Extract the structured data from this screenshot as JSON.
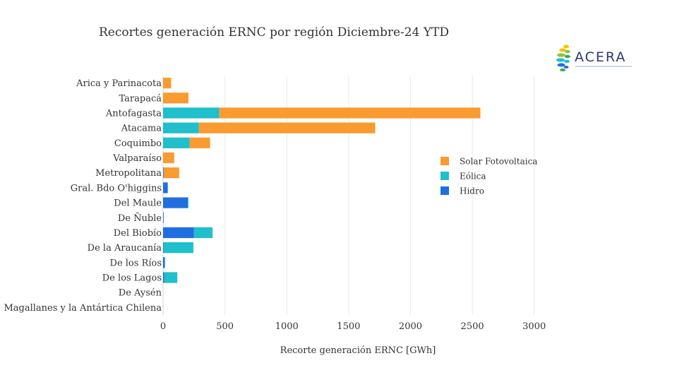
{
  "chart_data": {
    "type": "bar",
    "orientation": "horizontal",
    "stacked": true,
    "title": "Recortes generación ERNC por región Diciembre-24 YTD",
    "xlabel": "Recorte generación ERNC [GWh]",
    "ylabel": "",
    "xlim": [
      0,
      3150
    ],
    "xticks": [
      0,
      500,
      1000,
      1500,
      2000,
      2500,
      3000
    ],
    "grid": "vertical",
    "legend_position": "right",
    "categories": [
      "Arica y Parinacota",
      "Tarapacá",
      "Antofagasta",
      "Atacama",
      "Coquimbo",
      "Valparaíso",
      "Metropolitana",
      "Gral. Bdo O'higgins",
      "Del Maule",
      "De Ñuble",
      "Del Biobío",
      "De la Araucanía",
      "De los Ríos",
      "De los Lagos",
      "De Aysén",
      "Magallanes y la Antártica Chilena"
    ],
    "series": [
      {
        "name": "Hidro",
        "color": "#1f6fe0",
        "values": [
          0,
          0,
          0,
          0,
          0,
          0,
          5,
          38,
          200,
          5,
          250,
          5,
          15,
          10,
          0,
          0
        ]
      },
      {
        "name": "Eólica",
        "color": "#1fbfcc",
        "values": [
          0,
          0,
          455,
          290,
          215,
          0,
          0,
          0,
          5,
          0,
          150,
          240,
          0,
          105,
          0,
          0
        ]
      },
      {
        "name": "Solar Fotovoltaica",
        "color": "#f99b30",
        "values": [
          65,
          205,
          2110,
          1425,
          165,
          90,
          125,
          0,
          0,
          0,
          0,
          0,
          0,
          0,
          0,
          0
        ]
      }
    ],
    "legend_order": [
      "Solar Fotovoltaica",
      "Eólica",
      "Hidro"
    ]
  },
  "logo": {
    "text": "ACERA",
    "petal_colors": [
      "#f5c400",
      "#8cc63f",
      "#1fbfcc",
      "#1f6fe0",
      "#3aa35a"
    ]
  }
}
